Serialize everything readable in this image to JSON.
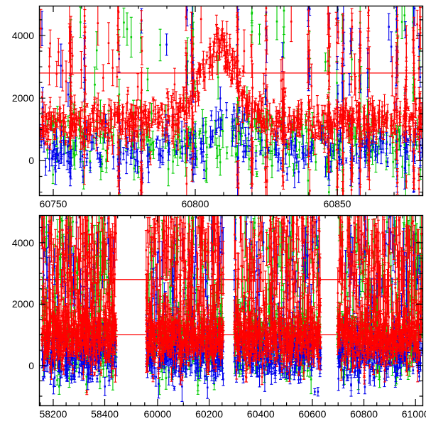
{
  "figure": {
    "background": "#ffffff",
    "frame_color": "#000000"
  },
  "chart_data": [
    {
      "type": "scatter",
      "panel": "top",
      "title": "",
      "xlabel": "",
      "ylabel": "",
      "xlim": [
        60745,
        60880
      ],
      "ylim": [
        -1100,
        4950
      ],
      "xticks": {
        "major": [
          60750,
          60800,
          60850
        ],
        "minor_step": 10
      },
      "yticks": {
        "major": [
          0,
          2000,
          4000
        ],
        "minor_step": 500
      },
      "hlines": [
        {
          "y": 2800,
          "color": "#ff0000"
        }
      ],
      "draw_order": [
        "green",
        "blue",
        "red"
      ],
      "series": {
        "green": {
          "color": "#00cc00",
          "n": 270,
          "baseline": 650,
          "spread": 480,
          "err_mean": 260,
          "err_spread": 120,
          "outlier_frac": 0.08,
          "outlier_range": [
            2400,
            4700
          ],
          "outlier_err": [
            250,
            700
          ]
        },
        "blue": {
          "color": "#0000ee",
          "n": 260,
          "baseline": 380,
          "spread": 350,
          "err_mean": 220,
          "err_spread": 100,
          "outlier_frac": 0.03,
          "outlier_range": [
            1500,
            4300
          ],
          "outlier_err": [
            250,
            700
          ],
          "bump": {
            "center": 60811,
            "sigma": 4,
            "amplitude": 1250
          }
        },
        "red": {
          "color": "#ff0000",
          "n": 760,
          "baseline": 1250,
          "spread": 320,
          "err_mean": 200,
          "err_spread": 110,
          "outlier_frac": 0.05,
          "outlier_range": [
            2200,
            4700
          ],
          "outlier_err": [
            300,
            800
          ],
          "bump": {
            "center": 60808,
            "sigma": 6,
            "amplitude": 2500
          }
        }
      },
      "noisy_columns": {
        "x": [
          60756,
          60761,
          60773,
          60781,
          60797,
          60799,
          60815,
          60820,
          60825,
          60831,
          60840,
          60847,
          60850,
          60852,
          60855,
          60858,
          60861,
          60871,
          60874,
          60877,
          60879
        ],
        "jitter": 0.35,
        "y_range": [
          -1050,
          4900
        ],
        "err_range": [
          200,
          800
        ],
        "per_color": {
          "red": 11,
          "blue": 5,
          "green": 4
        }
      }
    },
    {
      "type": "scatter",
      "panel": "bottom",
      "title": "",
      "xlabel": "",
      "ylabel": "",
      "x_segments": [
        {
          "range": [
            58145,
            58520
          ],
          "frac": [
            0,
            0.252
          ]
        },
        {
          "range": [
            59915,
            61027
          ],
          "frac": [
            0.252,
            1
          ]
        }
      ],
      "ylim": [
        -1300,
        4900
      ],
      "xticks": {
        "major": [
          58200,
          58400,
          60000,
          60200,
          60400,
          60600,
          60800,
          61000
        ],
        "minor_step": 50
      },
      "yticks": {
        "major": [
          0,
          2000,
          4000
        ],
        "minor_step": 500
      },
      "hlines": [
        {
          "y": 2800,
          "color": "#ff0000"
        },
        {
          "y": 1000,
          "color": "#ff0000"
        }
      ],
      "draw_order": [
        "green",
        "blue",
        "red"
      ],
      "clusters": [
        [
          58155,
          58445
        ],
        [
          59955,
          60255
        ],
        [
          60297,
          60633
        ],
        [
          60697,
          61025
        ]
      ],
      "series": {
        "green": {
          "color": "#00cc00",
          "n_per_cluster": 260,
          "baseline": 800,
          "spread": 520,
          "err_mean": 260,
          "err_spread": 120,
          "tail_frac": 0.25,
          "tail_range": [
            1500,
            4800
          ],
          "tail_err": [
            300,
            900
          ]
        },
        "blue": {
          "color": "#0000ee",
          "n_per_cluster": 260,
          "baseline": 320,
          "spread": 380,
          "err_mean": 220,
          "err_spread": 110,
          "tail_frac": 0.18,
          "tail_range": [
            1200,
            4700
          ],
          "tail_err": [
            300,
            900
          ]
        },
        "red": {
          "color": "#ff0000",
          "n_per_cluster": 700,
          "baseline": 900,
          "spread": 430,
          "err_mean": 180,
          "err_spread": 100,
          "tail_frac": 0.3,
          "tail_range": [
            1200,
            4850
          ],
          "tail_err": [
            300,
            900
          ]
        }
      }
    }
  ]
}
